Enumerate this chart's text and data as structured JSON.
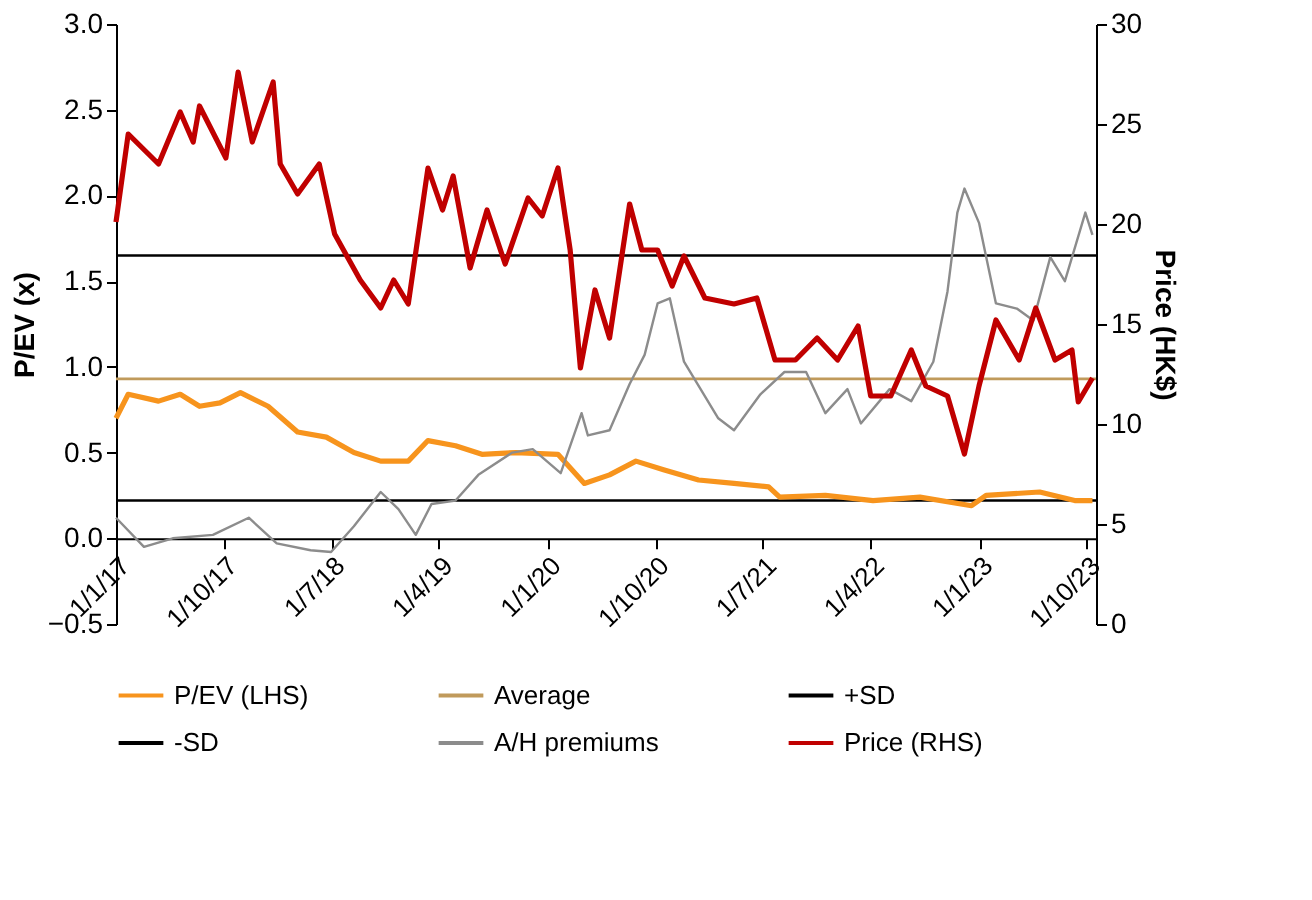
{
  "chart_data": {
    "type": "line",
    "ylabel": "P/EV (x)",
    "y2label": "Price (HK$)",
    "xlim": [
      "2017-01-01",
      "2023-10-25"
    ],
    "xticks": [
      {
        "value": "2017-01-01",
        "label": "1/1/17"
      },
      {
        "value": "2017-10-01",
        "label": "1/10/17"
      },
      {
        "value": "2018-07-01",
        "label": "1/7/18"
      },
      {
        "value": "2019-04-01",
        "label": "1/4/19"
      },
      {
        "value": "2020-01-01",
        "label": "1/1/20"
      },
      {
        "value": "2020-10-01",
        "label": "1/10/20"
      },
      {
        "value": "2021-07-01",
        "label": "1/7/21"
      },
      {
        "value": "2022-04-01",
        "label": "1/4/22"
      },
      {
        "value": "2023-01-01",
        "label": "1/1/23"
      },
      {
        "value": "2023-10-01",
        "label": "1/10/23"
      }
    ],
    "ylim": [
      -0.5,
      3.0
    ],
    "yticks": [
      -0.5,
      {
        "value": 0,
        "label": "0.0"
      },
      0.5,
      {
        "value": 1,
        "label": "1.0"
      },
      1.5,
      {
        "value": 2,
        "label": "2.0"
      },
      2.5,
      {
        "value": 3,
        "label": "3.0"
      }
    ],
    "y2lim": [
      0,
      30
    ],
    "y2ticks": [
      0,
      5,
      10,
      15,
      20,
      25,
      30
    ],
    "grid": false,
    "legend": "bottom",
    "line_style": "solid",
    "marker": "none",
    "ref_lines": [
      {
        "axis": "y",
        "value": 0.93,
        "label": "Average",
        "color": "#c09a5b"
      },
      {
        "axis": "y",
        "value": 1.65,
        "label": "+SD",
        "color": "#000000"
      },
      {
        "axis": "y",
        "value": 0.22,
        "label": "-SD",
        "color": "#000000"
      }
    ],
    "series": [
      {
        "name": "P/EV (LHS)",
        "color": "#f7941d",
        "x": [
          "2017-01-01",
          "2017-02-01",
          "2017-04-19",
          "2017-06-13",
          "2017-08-01",
          "2017-09-22",
          "2017-11-13",
          "2018-01-22",
          "2018-04-07",
          "2018-06-19",
          "2018-08-28",
          "2018-11-04",
          "2019-01-13",
          "2019-03-04",
          "2019-05-13",
          "2019-07-19",
          "2019-10-13",
          "2020-01-28",
          "2020-04-04",
          "2020-06-07",
          "2020-08-13",
          "2020-10-22",
          "2021-01-19",
          "2021-04-19",
          "2021-07-16",
          "2021-08-13",
          "2021-12-07",
          "2022-04-07",
          "2022-08-04",
          "2022-12-13",
          "2023-01-19",
          "2023-06-04",
          "2023-09-01",
          "2023-10-16"
        ],
        "values": [
          0.7,
          0.84,
          0.8,
          0.84,
          0.77,
          0.79,
          0.85,
          0.77,
          0.62,
          0.59,
          0.5,
          0.45,
          0.45,
          0.57,
          0.54,
          0.49,
          0.5,
          0.49,
          0.32,
          0.37,
          0.45,
          0.4,
          0.34,
          0.32,
          0.3,
          0.24,
          0.25,
          0.22,
          0.24,
          0.19,
          0.25,
          0.27,
          0.22,
          0.22
        ]
      },
      {
        "name": "A/H premiums",
        "color": "#8c8c8c",
        "x": [
          "2017-01-01",
          "2017-03-13",
          "2017-05-25",
          "2017-09-04",
          "2017-12-04",
          "2018-02-13",
          "2018-05-10",
          "2018-07-01",
          "2018-08-28",
          "2018-11-04",
          "2018-12-19",
          "2019-02-01",
          "2019-03-13",
          "2019-05-13",
          "2019-07-10",
          "2019-10-04",
          "2019-11-25",
          "2020-02-04",
          "2020-03-28",
          "2020-04-13",
          "2020-06-07",
          "2020-07-28",
          "2020-09-04",
          "2020-10-07",
          "2020-11-07",
          "2020-12-13",
          "2021-03-10",
          "2021-04-19",
          "2021-06-25",
          "2021-08-25",
          "2021-10-19",
          "2021-12-07",
          "2022-02-01",
          "2022-03-07",
          "2022-05-19",
          "2022-07-13",
          "2022-09-07",
          "2022-10-13",
          "2022-11-07",
          "2022-11-25",
          "2023-01-01",
          "2023-02-13",
          "2023-04-07",
          "2023-05-19",
          "2023-07-01",
          "2023-08-07",
          "2023-09-28",
          "2023-10-16"
        ],
        "values": [
          0.12,
          -0.05,
          0.0,
          0.02,
          0.12,
          -0.03,
          -0.07,
          -0.08,
          0.07,
          0.27,
          0.17,
          0.02,
          0.2,
          0.22,
          0.37,
          0.5,
          0.52,
          0.38,
          0.73,
          0.6,
          0.63,
          0.9,
          1.07,
          1.37,
          1.4,
          1.03,
          0.7,
          0.63,
          0.84,
          0.97,
          0.97,
          0.73,
          0.87,
          0.67,
          0.87,
          0.8,
          1.03,
          1.44,
          1.9,
          2.04,
          1.84,
          1.37,
          1.34,
          1.27,
          1.64,
          1.5,
          1.9,
          1.77
        ]
      },
      {
        "name": "Price (RHS)",
        "color": "#c00000",
        "axis": "y2",
        "x": [
          "2017-01-01",
          "2017-02-01",
          "2017-04-19",
          "2017-06-13",
          "2017-07-16",
          "2017-08-01",
          "2017-10-07",
          "2017-11-07",
          "2017-12-13",
          "2018-02-04",
          "2018-02-22",
          "2018-04-07",
          "2018-06-01",
          "2018-07-10",
          "2018-09-13",
          "2018-11-04",
          "2018-12-07",
          "2019-01-13",
          "2019-03-04",
          "2019-04-10",
          "2019-05-07",
          "2019-06-19",
          "2019-08-01",
          "2019-09-16",
          "2019-11-13",
          "2019-12-19",
          "2020-01-28",
          "2020-02-28",
          "2020-03-25",
          "2020-05-01",
          "2020-06-07",
          "2020-07-28",
          "2020-08-28",
          "2020-10-07",
          "2020-11-13",
          "2020-12-13",
          "2021-02-04",
          "2021-04-19",
          "2021-06-16",
          "2021-08-01",
          "2021-09-22",
          "2021-11-16",
          "2022-01-07",
          "2022-02-28",
          "2022-04-01",
          "2022-05-22",
          "2022-07-13",
          "2022-08-19",
          "2022-10-13",
          "2022-11-25",
          "2023-01-01",
          "2023-02-13",
          "2023-04-13",
          "2023-05-25",
          "2023-07-13",
          "2023-08-25",
          "2023-09-10",
          "2023-10-16"
        ],
        "values": [
          20.1,
          24.5,
          23.0,
          25.6,
          24.1,
          25.9,
          23.3,
          27.6,
          24.1,
          27.1,
          23.0,
          21.5,
          23.0,
          19.5,
          17.2,
          15.8,
          17.2,
          16.0,
          22.8,
          20.7,
          22.4,
          17.8,
          20.7,
          18.0,
          21.3,
          20.4,
          22.8,
          18.7,
          12.8,
          16.7,
          14.3,
          21.0,
          18.7,
          18.7,
          16.9,
          18.4,
          16.3,
          16.0,
          16.3,
          13.2,
          13.2,
          14.3,
          13.2,
          14.9,
          11.4,
          11.4,
          13.7,
          11.9,
          11.4,
          8.5,
          11.9,
          15.2,
          13.2,
          15.8,
          13.2,
          13.7,
          11.1,
          12.3
        ]
      }
    ]
  }
}
